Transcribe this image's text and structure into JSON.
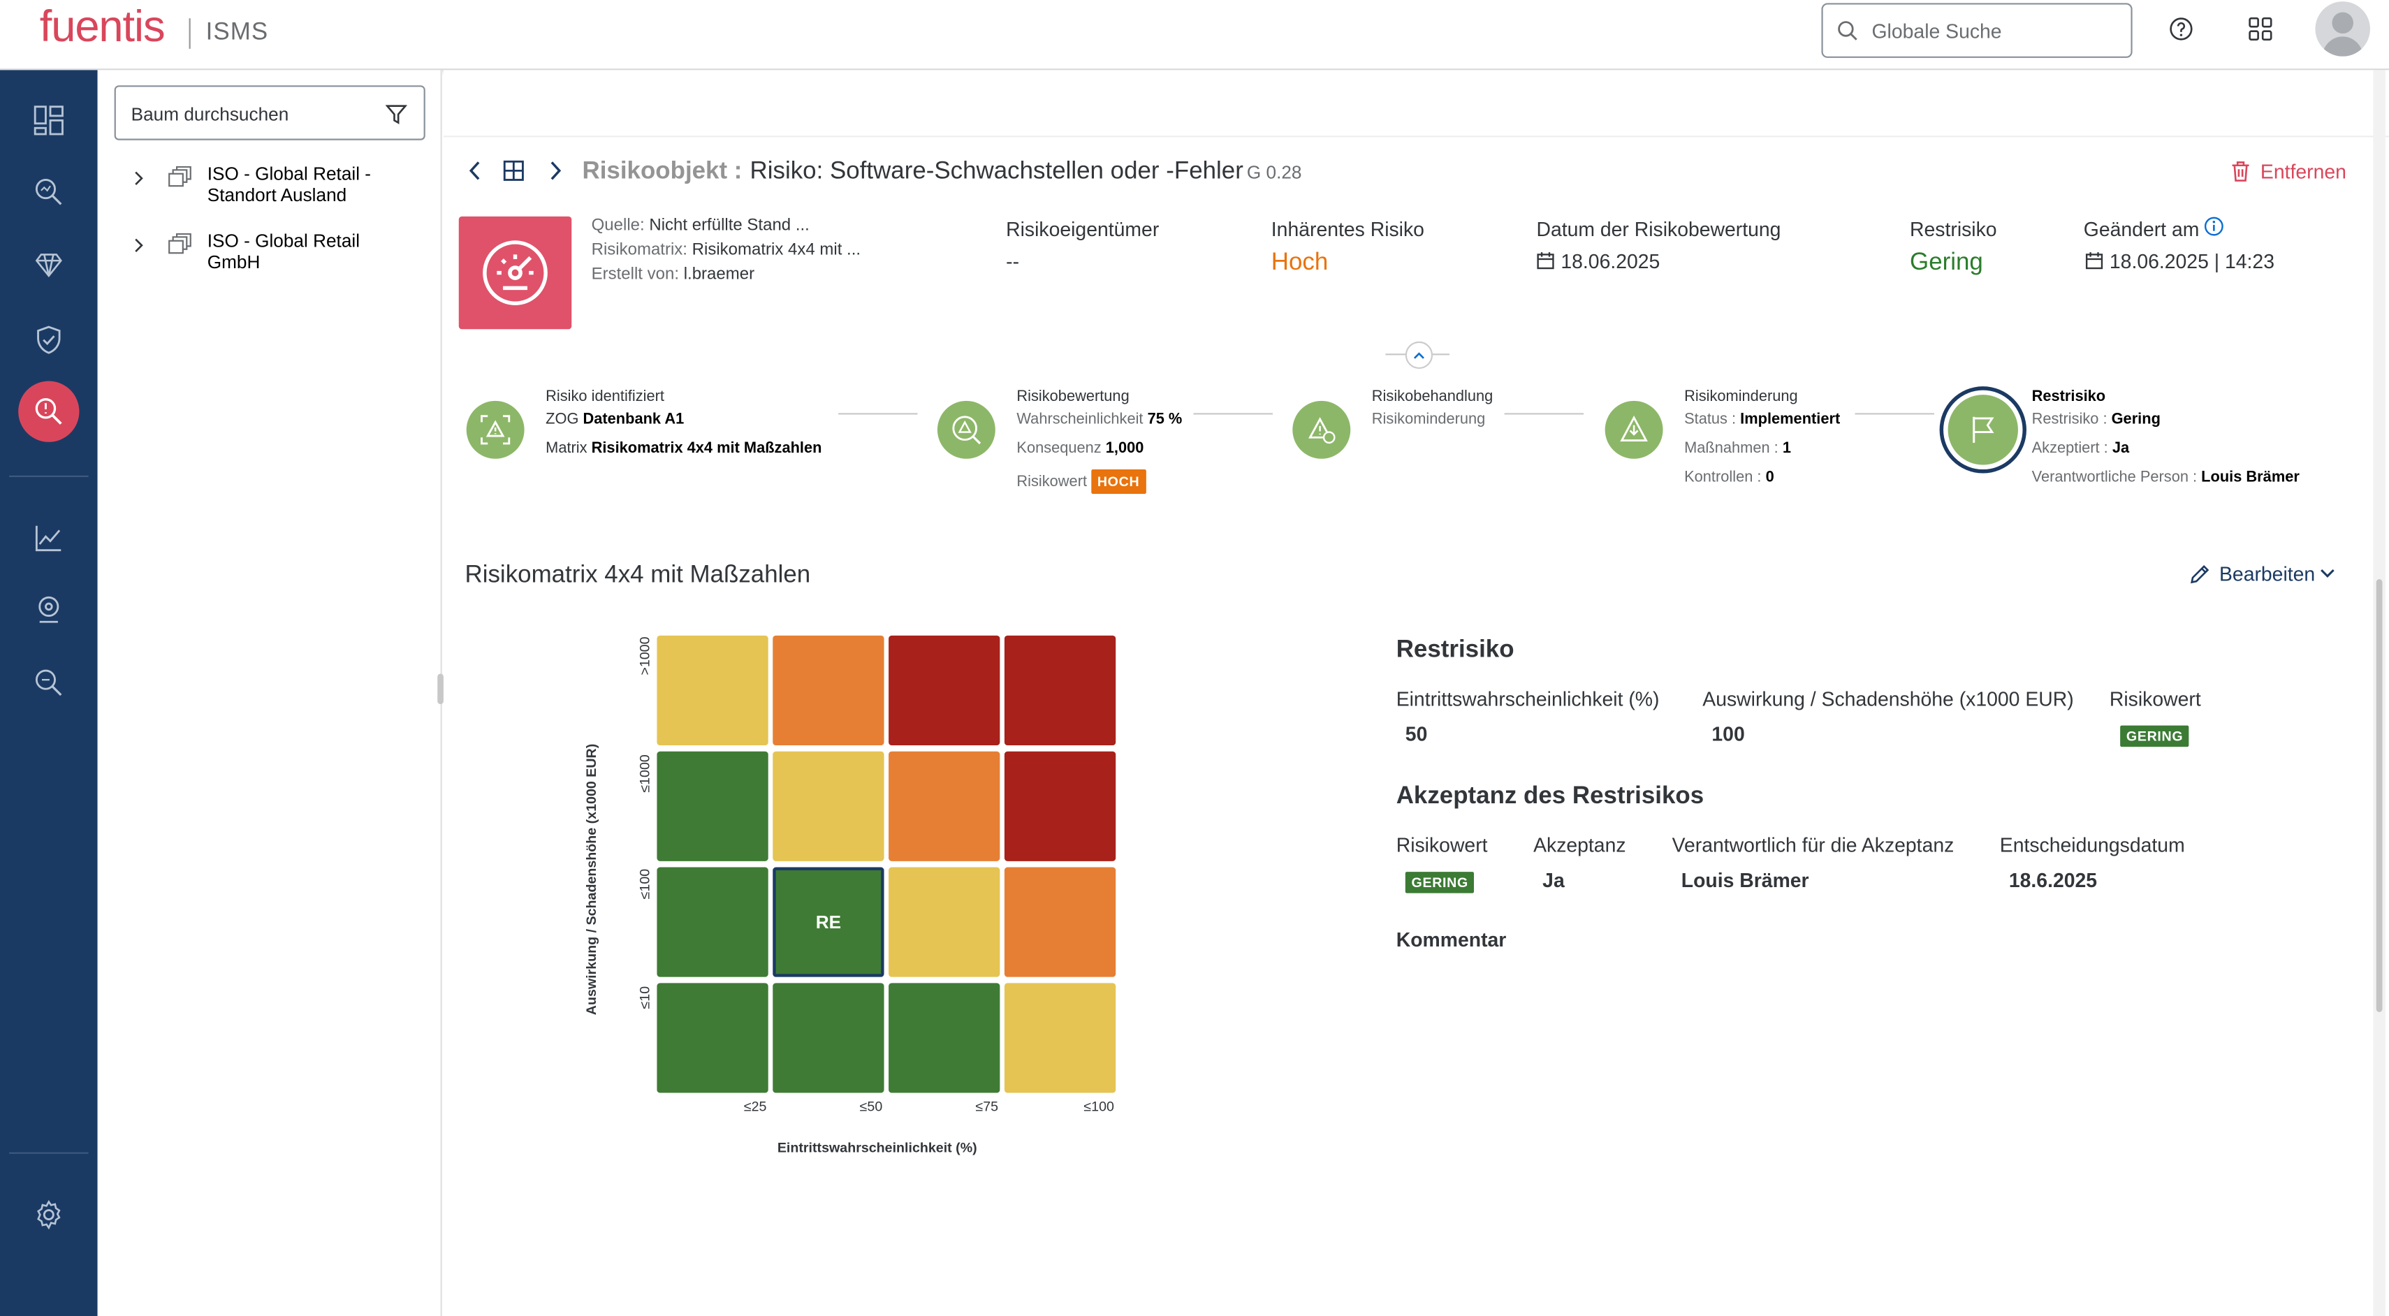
{
  "app": {
    "logo": "fuentis",
    "subtitle": "ISMS"
  },
  "header": {
    "search_placeholder": "Globale Suche"
  },
  "tree": {
    "search_placeholder": "Baum durchsuchen",
    "items": [
      {
        "label": "ISO - Global Retail - Standort Ausland"
      },
      {
        "label": "ISO - Global Retail GmbH"
      }
    ]
  },
  "object": {
    "type_label": "Risikoobjekt :",
    "title": "Risiko: Software-Schwachstellen oder -Fehler",
    "version": "G 0.28",
    "remove_label": "Entfernen",
    "meta": [
      {
        "label": "Quelle:",
        "value": "Nicht erfüllte Stand ..."
      },
      {
        "label": "Risikomatrix:",
        "value": "Risikomatrix 4x4 mit ..."
      },
      {
        "label": "Erstellt von:",
        "value": "l.braemer"
      }
    ],
    "owner_label": "Risikoeigentümer",
    "owner_value": "--",
    "inherent_label": "Inhärentes Risiko",
    "inherent_value": "Hoch",
    "assess_date_label": "Datum der Risikobewertung",
    "assess_date_value": "18.06.2025",
    "residual_label": "Restrisiko",
    "residual_value": "Gering",
    "changed_label": "Geändert am",
    "changed_value": "18.06.2025 | 14:23"
  },
  "steps": [
    {
      "title": "Risiko identifiziert",
      "l1a": "ZOG ",
      "l1b": "Datenbank A1",
      "l2a": "Matrix ",
      "l2b": "Risikomatrix 4x4 mit Maßzahlen"
    },
    {
      "title": "Risikobewertung",
      "l1a": "Wahrscheinlichkeit ",
      "l1b": "75 %",
      "l2a": "Konsequenz ",
      "l2b": "1,000",
      "l3a": "Risikowert ",
      "badge": "HOCH"
    },
    {
      "title": "Risikobehandlung",
      "l1a": "Risikominderung"
    },
    {
      "title": "Risikominderung",
      "l1a": "Status : ",
      "l1b": "Implementiert",
      "l2a": "Maßnahmen : ",
      "l2b": "1",
      "l3a": "Kontrollen : ",
      "l3b": "0"
    },
    {
      "title": "Restrisiko",
      "l1a": "Restrisiko : ",
      "l1b": "Gering",
      "l2a": "Akzeptiert : ",
      "l2b": "Ja",
      "l3a": "Verantwortliche Person : ",
      "l3b": "Louis Brämer"
    }
  ],
  "matrix": {
    "title": "Risikomatrix 4x4 mit Maßzahlen",
    "edit_label": "Bearbeiten",
    "y_axis_label": "Auswirkung / Schadenshöhe (x1000 EUR)",
    "x_axis_label": "Eintrittswahrscheinlichkeit (%)",
    "y_ticks": [
      ">1000",
      "≤1000",
      "≤100",
      "≤10"
    ],
    "x_ticks": [
      "≤25",
      "≤50",
      "≤75",
      "≤100"
    ],
    "marker_label": "RE",
    "colors": {
      "yellow": "#e5c453",
      "orange": "#e67f34",
      "red": "#a8211a",
      "green": "#3f7b35"
    }
  },
  "restrisiko": {
    "title": "Restrisiko",
    "col1_label": "Eintrittswahrscheinlichkeit (%)",
    "col1_value": "50",
    "col2_label": "Auswirkung / Schadenshöhe (x1000 EUR)",
    "col2_value": "100",
    "col3_label": "Risikowert",
    "col3_badge": "GERING"
  },
  "acceptance": {
    "title": "Akzeptanz des Restrisikos",
    "col1_label": "Risikowert",
    "col1_badge": "GERING",
    "col2_label": "Akzeptanz",
    "col2_value": "Ja",
    "col3_label": "Verantwortlich für die Akzeptanz",
    "col3_value": "Louis Brämer",
    "col4_label": "Entscheidungsdatum",
    "col4_value": "18.6.2025",
    "comment_label": "Kommentar"
  }
}
